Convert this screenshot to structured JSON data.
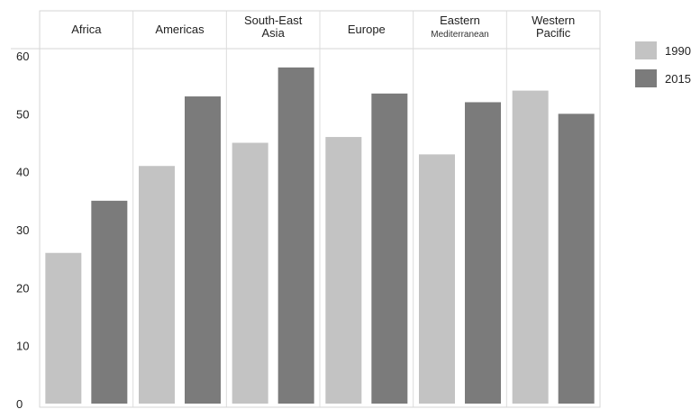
{
  "chart_data": {
    "type": "bar",
    "categories": [
      {
        "lines": [
          "Africa"
        ]
      },
      {
        "lines": [
          "Americas"
        ]
      },
      {
        "lines": [
          "South-East",
          "Asia"
        ]
      },
      {
        "lines": [
          "Europe"
        ]
      },
      {
        "lines": [
          "Eastern",
          "Mediterranean"
        ]
      },
      {
        "lines": [
          "Western",
          "Pacific"
        ]
      }
    ],
    "series": [
      {
        "name": "1990",
        "color": "#c3c3c3",
        "values": [
          26,
          41,
          45,
          46,
          43,
          54
        ]
      },
      {
        "name": "2015",
        "color": "#7b7b7b",
        "values": [
          35,
          53,
          58,
          53.5,
          52,
          50
        ]
      }
    ],
    "ylim": [
      0,
      60
    ],
    "yticks": [
      0,
      10,
      20,
      30,
      40,
      50,
      60
    ],
    "grid": false,
    "legend": "right"
  }
}
